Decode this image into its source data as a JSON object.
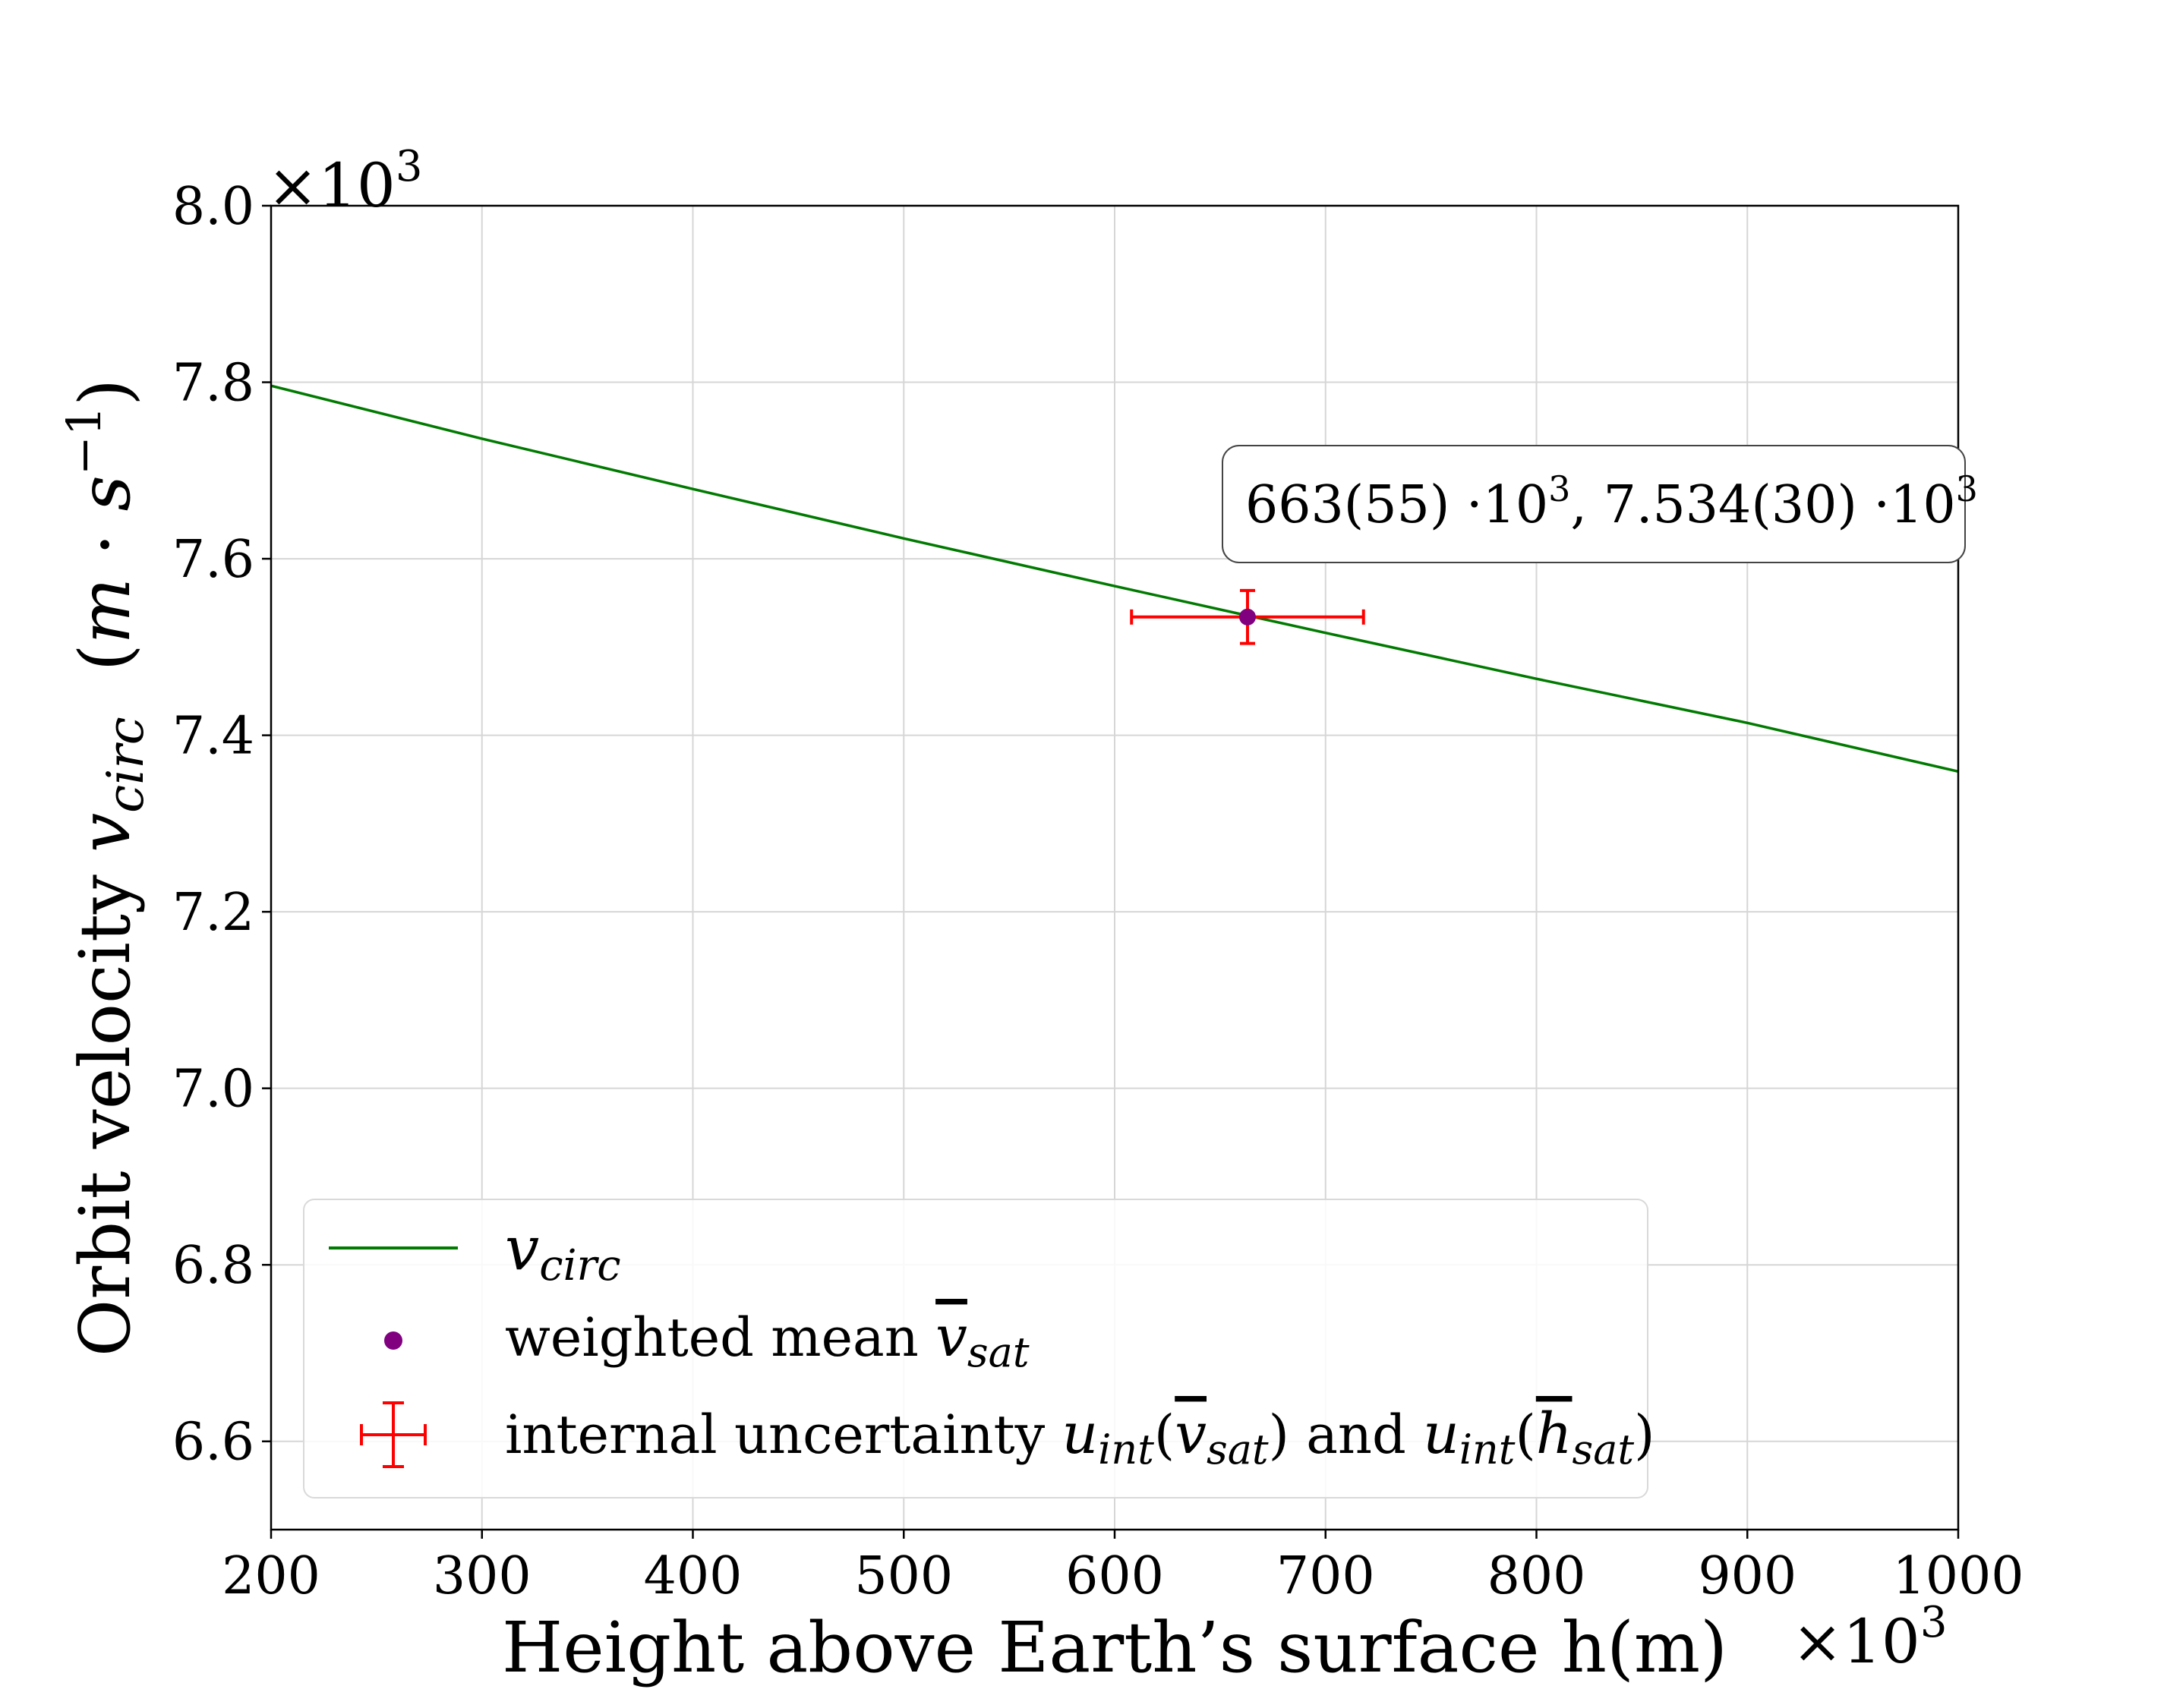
{
  "chart_data": {
    "type": "line",
    "xlabel": "Height above Earth’s surface h(m)",
    "ylabel_prefix": "Orbit velocity ",
    "ylabel_var": "v",
    "ylabel_sub": "circ",
    "ylabel_unit_open": "(",
    "ylabel_unit_m": "m",
    "ylabel_unit_dot": " · ",
    "ylabel_unit_s": "s",
    "ylabel_unit_exp": "−1",
    "ylabel_unit_close": ")",
    "x_multiplier_base": "×10",
    "x_multiplier_exp": "3",
    "y_multiplier_base": "×10",
    "y_multiplier_exp": "3",
    "xlim": [
      200,
      1000
    ],
    "ylim": [
      6.5,
      8.0
    ],
    "x_ticks": [
      200,
      300,
      400,
      500,
      600,
      700,
      800,
      900,
      1000
    ],
    "x_tick_labels": [
      "200",
      "300",
      "400",
      "500",
      "600",
      "700",
      "800",
      "900",
      "1000"
    ],
    "y_ticks": [
      6.6,
      6.8,
      7.0,
      7.2,
      7.4,
      7.6,
      7.8,
      8.0
    ],
    "y_tick_labels": [
      "6.6",
      "6.8",
      "7.0",
      "7.2",
      "7.4",
      "7.6",
      "7.8",
      "8.0"
    ],
    "grid": true,
    "legend_position": "lower-left",
    "series": [
      {
        "name": "v_circ",
        "kind": "line",
        "color": "#007a00",
        "x": [
          200,
          300,
          400,
          500,
          600,
          700,
          800,
          900,
          1000
        ],
        "y": [
          7.796,
          7.736,
          7.679,
          7.623,
          7.569,
          7.516,
          7.464,
          7.414,
          7.359
        ]
      },
      {
        "name": "weighted mean",
        "kind": "point",
        "color": "#800080",
        "x": 663,
        "y": 7.534
      },
      {
        "name": "internal uncertainty",
        "kind": "errorbar",
        "color": "#ff0000",
        "x": 663,
        "y": 7.534,
        "xerr": 55,
        "yerr": 0.03
      }
    ],
    "annotation": {
      "text_a": "663(55) ·10",
      "exp_a": "3",
      "text_b": ", 7.534(30) ·10",
      "exp_b": "3"
    },
    "legend": {
      "line_var": "v",
      "line_sub": "circ",
      "point_text": "weighted mean ",
      "point_var": "v",
      "point_sub": "sat",
      "err_text_1": "internal uncertainty ",
      "err_u1": "u",
      "err_u1_sub": "int",
      "err_open_1": "(",
      "err_v": "v",
      "err_v_sub": "sat",
      "err_close_1": ")",
      "err_and": " and ",
      "err_u2": "u",
      "err_u2_sub": "int",
      "err_open_2": "(",
      "err_h": "h",
      "err_h_sub": "sat",
      "err_close_2": ")"
    }
  }
}
